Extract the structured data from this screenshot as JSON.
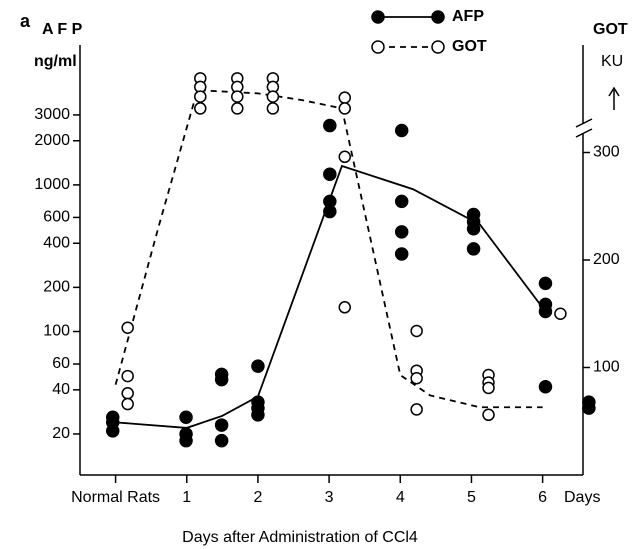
{
  "chart_data": {
    "type": "scatter",
    "panel_label": "a",
    "ylabel": "A F P",
    "yunit": "ng/ml",
    "y2label": "GOT",
    "y2unit": "KU",
    "xlabel": "Days after Administration of CCl4",
    "xunit": "Days",
    "xlim": [
      -0.5,
      6.75
    ],
    "xticks": [
      {
        "value": 0,
        "label": "Normal Rats"
      },
      1,
      2,
      3,
      4,
      5,
      6
    ],
    "ylim": [
      10.5,
      9000
    ],
    "ylog": true,
    "yticks": [
      20,
      40,
      60,
      100,
      200,
      400,
      600,
      1000,
      2000,
      3000
    ],
    "y2lim": [
      0,
      400
    ],
    "y2ticks": [
      100,
      200,
      300
    ],
    "legend": "top",
    "series": [
      {
        "name": "AFP",
        "axis": "y",
        "color": "#000000",
        "line_style": "solid",
        "marker": "filled",
        "x": [
          0,
          1,
          1.5,
          2,
          3.18,
          4.18,
          5.12,
          6.02
        ],
        "values": [
          24,
          22,
          26.6,
          36,
          1346,
          934,
          536,
          141
        ],
        "points_x": [
          -0.04,
          -0.04,
          -0.04,
          0.99,
          0.99,
          0.99,
          1.49,
          1.49,
          1.49,
          1.49,
          2.0,
          2.0,
          2.0,
          2.0,
          3.01,
          3.01,
          3.01,
          3.01,
          4.02,
          4.02,
          4.02,
          4.02,
          5.03,
          5.03,
          5.03,
          5.03,
          6.04,
          6.04,
          6.04,
          6.04,
          6.65,
          6.65
        ],
        "points_values": [
          26,
          24,
          21,
          26,
          20,
          18,
          51,
          47,
          23,
          18,
          58,
          33,
          30,
          27,
          2540,
          1183,
          772,
          658,
          2350,
          772,
          478,
          338,
          628,
          561,
          502,
          366,
          213,
          153,
          137,
          42,
          33,
          30
        ]
      },
      {
        "name": "GOT",
        "axis": "y2",
        "color": "#000000",
        "line_style": "dashed",
        "marker": "open",
        "x": [
          0,
          0.6,
          1.15,
          2.0,
          2.6,
          3.18,
          4.0,
          4.42,
          5.12,
          6.0
        ],
        "values": [
          84,
          230,
          358,
          355,
          349,
          341,
          93,
          74,
          63,
          63
        ],
        "points_x": [
          0.17,
          0.17,
          0.17,
          0.17,
          1.19,
          1.19,
          1.19,
          1.19,
          1.71,
          1.71,
          1.71,
          1.71,
          2.21,
          2.21,
          2.21,
          2.21,
          3.22,
          3.22,
          3.22,
          3.22,
          4.23,
          4.23,
          4.23,
          4.23,
          5.24,
          5.24,
          5.24,
          5.24,
          6.25
        ],
        "points_values": [
          137,
          92,
          76,
          66,
          369,
          361,
          352,
          341,
          369,
          361,
          352,
          341,
          369,
          361,
          352,
          341,
          351,
          341,
          296,
          156,
          134,
          97,
          90,
          61,
          93,
          86,
          81,
          56,
          150
        ]
      }
    ]
  }
}
